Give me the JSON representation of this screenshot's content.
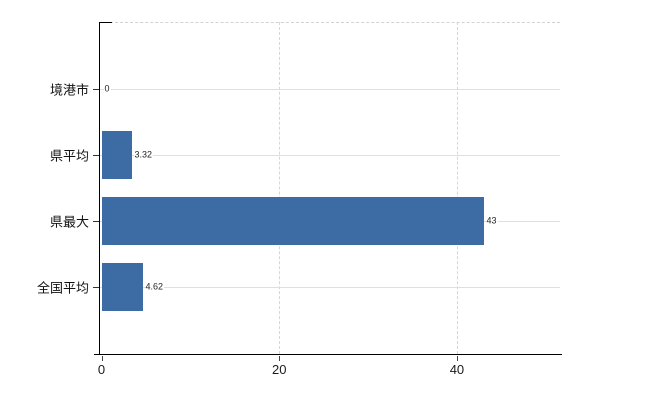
{
  "chart_data": {
    "type": "bar",
    "orientation": "horizontal",
    "title": "",
    "xlabel": "",
    "ylabel": "",
    "categories": [
      "境港市",
      "県平均",
      "県最大",
      "全国平均"
    ],
    "values": [
      0,
      3.32,
      43,
      4.62
    ],
    "value_labels": [
      "0",
      "3.32",
      "43",
      "4.62"
    ],
    "x_ticks": [
      0,
      20,
      40
    ],
    "x_tick_labels": [
      "0",
      "20",
      "40"
    ],
    "xlim": [
      0,
      51.6
    ],
    "grid": "horizontal lines at each category, dashed vertical at ticks",
    "legend": "none",
    "colors": {
      "bar": "#3d6ca5",
      "h_gridline": "#dbe1db",
      "v_gridline": "#d6d6d6",
      "top_border": "#cfd4cf",
      "axis": "#000000",
      "text": "#111111",
      "value_text": "#222222",
      "background": "#ffffff"
    }
  }
}
